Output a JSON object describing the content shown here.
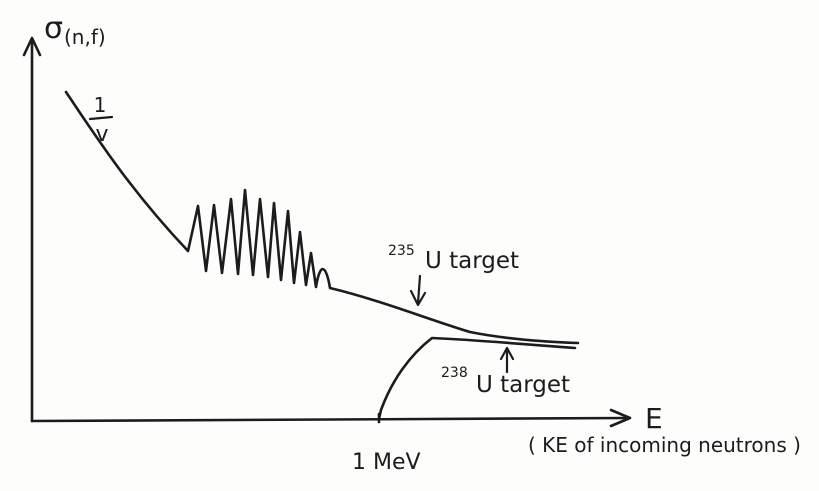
{
  "diagram": {
    "y_axis_symbol": "σ",
    "y_axis_subscript": "(n,f)",
    "x_axis_label": "E",
    "x_axis_note": "( KE of incoming neutrons )",
    "x_axis_tick_label": "1 MeV",
    "region_label_numerator": "1",
    "region_label_denominator": "v",
    "curve_u235": {
      "mass_number": "235",
      "label": "U target"
    },
    "curve_u238": {
      "mass_number": "238",
      "label": "U target"
    }
  }
}
